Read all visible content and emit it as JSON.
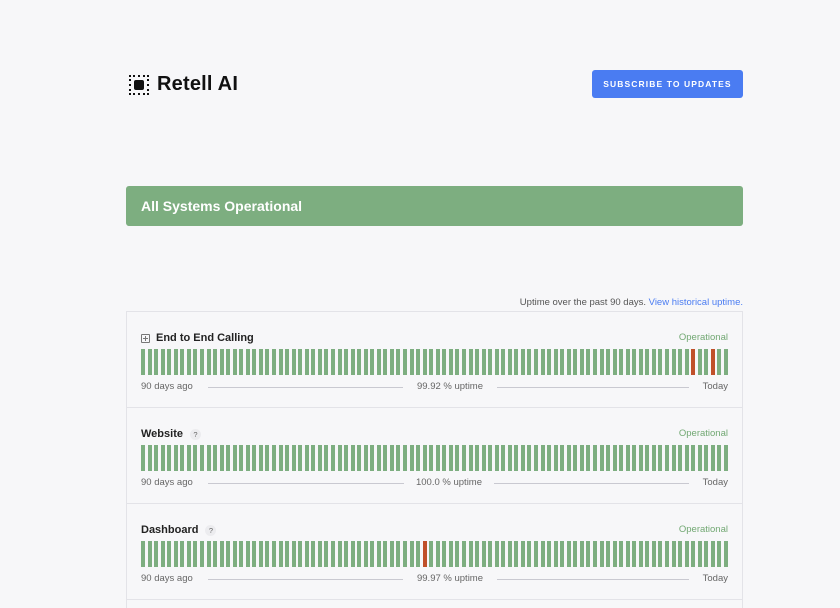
{
  "brand": {
    "name": "Retell AI",
    "logo_icon": "retell-logo-icon"
  },
  "header": {
    "subscribe_label": "SUBSCRIBE TO UPDATES"
  },
  "banner": {
    "text": "All Systems Operational"
  },
  "uptime_note": {
    "text": "Uptime over the past 90 days.",
    "link": "View historical uptime."
  },
  "colors": {
    "ok": "#7dae80",
    "bad": "#c0502a",
    "accent": "#4a7cf2",
    "status_text": "#72a873"
  },
  "components": [
    {
      "name": "End to End Calling",
      "expandable": true,
      "status": "Operational",
      "start_label": "90 days ago",
      "uptime_label": "99.92 % uptime",
      "end_label": "Today",
      "days": 90,
      "incident_days": [
        84,
        87
      ]
    },
    {
      "name": "Website",
      "help": "?",
      "status": "Operational",
      "start_label": "90 days ago",
      "uptime_label": "100.0 % uptime",
      "end_label": "Today",
      "days": 90,
      "incident_days": []
    },
    {
      "name": "Dashboard",
      "help": "?",
      "status": "Operational",
      "start_label": "90 days ago",
      "uptime_label": "99.97 % uptime",
      "end_label": "Today",
      "days": 90,
      "incident_days": [
        43
      ]
    }
  ]
}
